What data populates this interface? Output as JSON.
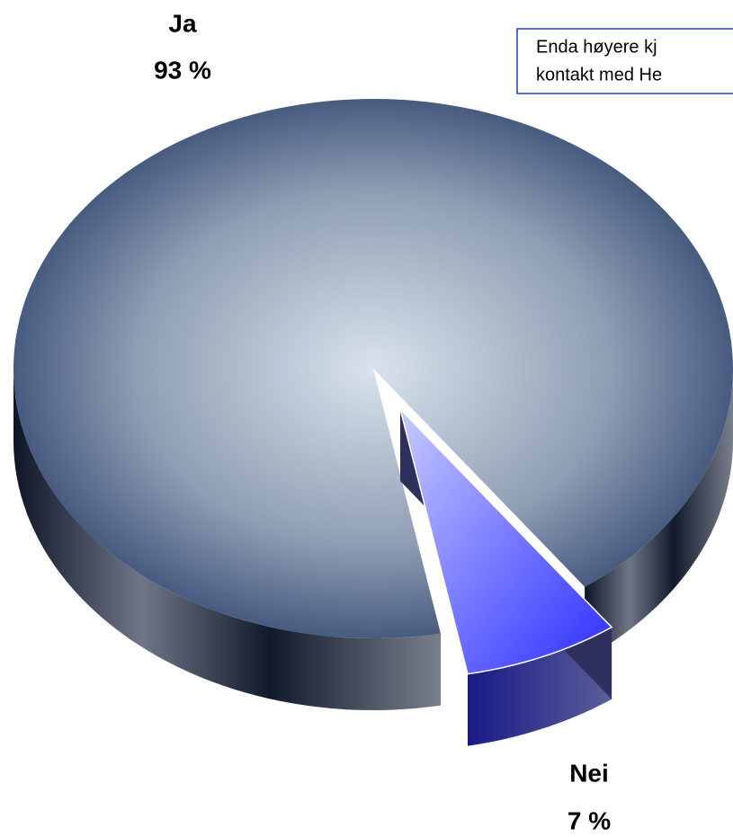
{
  "chart_data": {
    "type": "pie",
    "categories": [
      "Ja",
      "Nei"
    ],
    "values": [
      93,
      7
    ],
    "value_labels": [
      "93 %",
      "7 %"
    ],
    "colors": [
      "#8c9bb5",
      "#7f86ff"
    ],
    "annotation": [
      "Enda høyere kj",
      "kontakt med He"
    ]
  }
}
